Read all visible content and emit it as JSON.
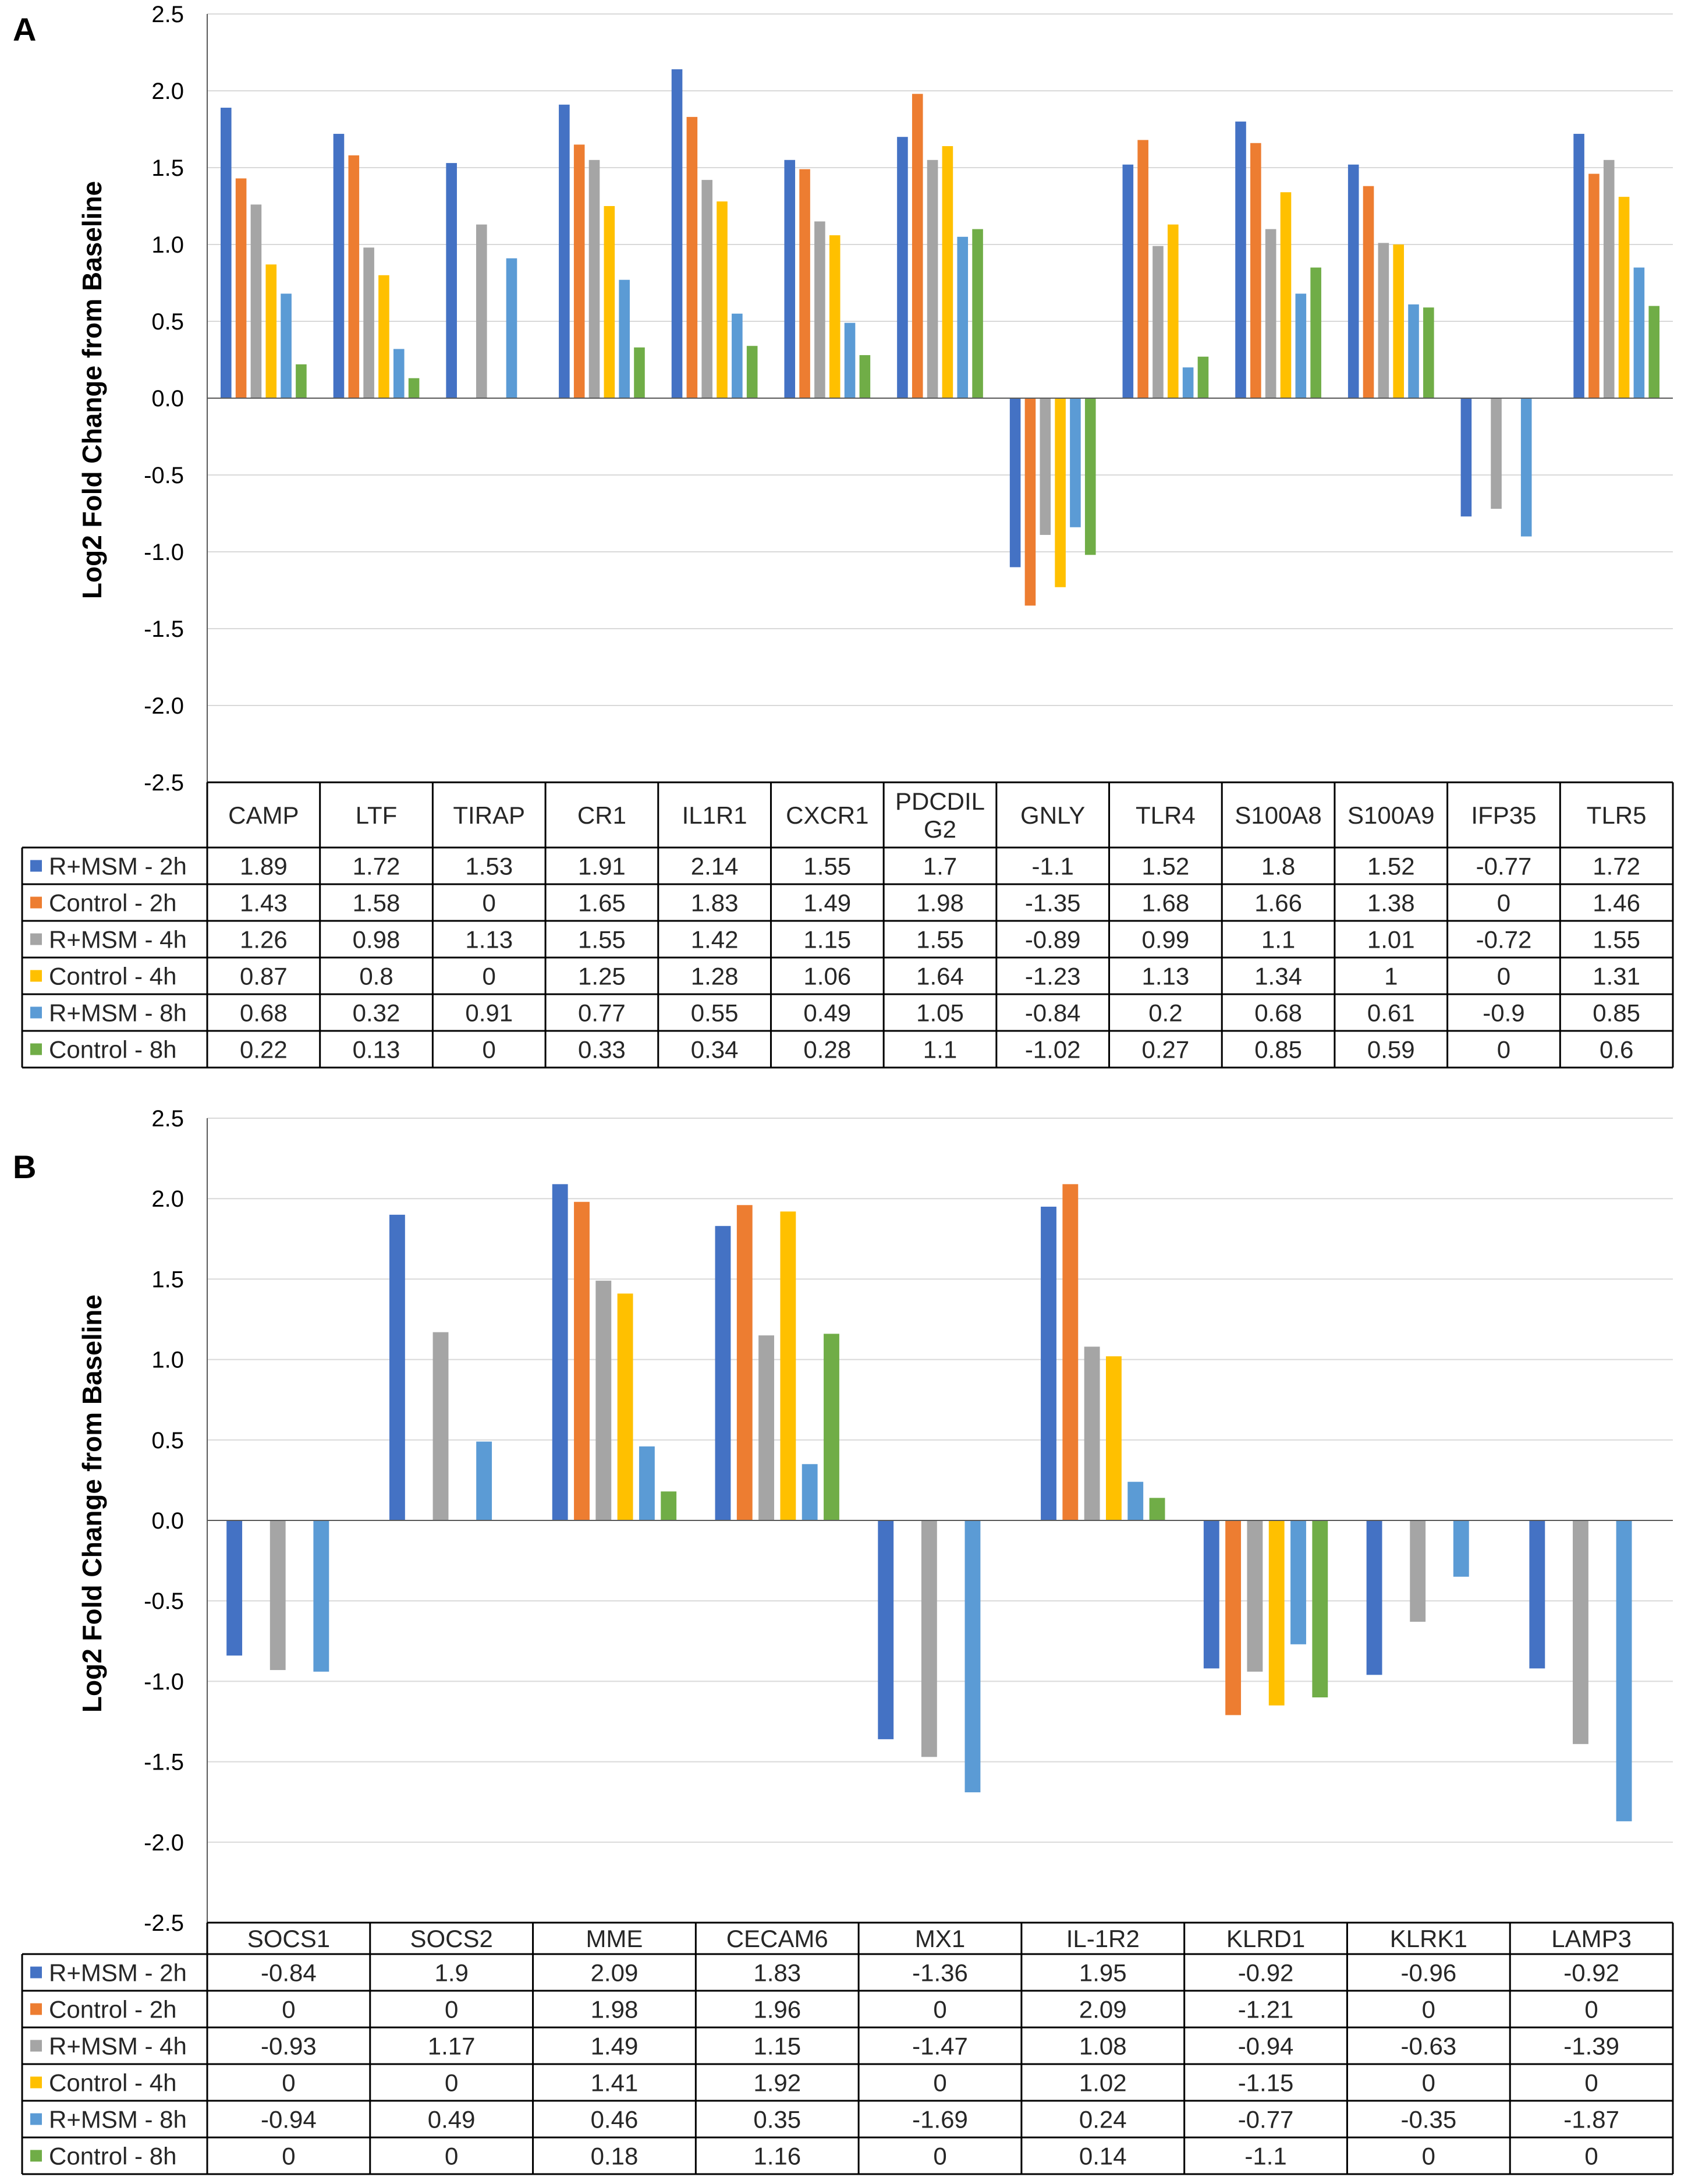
{
  "chart_data": [
    {
      "panel": "A",
      "type": "bar",
      "ylabel": "Log2 Fold Change from Baseline",
      "ylim": [
        -2.5,
        2.5
      ],
      "yticks": [
        "2.5",
        "2.0",
        "1.5",
        "1.0",
        "0.5",
        "0.0",
        "-0.5",
        "-1.0",
        "-1.5",
        "-2.0",
        "-2.5"
      ],
      "categories": [
        [
          "CAMP"
        ],
        [
          "LTF"
        ],
        [
          "TIRAP"
        ],
        [
          "CR1"
        ],
        [
          "IL1R1"
        ],
        [
          "CXCR1"
        ],
        [
          "PDCDIL",
          "G2"
        ],
        [
          "GNLY"
        ],
        [
          "TLR4"
        ],
        [
          "S100A8"
        ],
        [
          "S100A9"
        ],
        [
          "IFP35"
        ],
        [
          "TLR5"
        ]
      ],
      "series": [
        {
          "name": "R+MSM - 2h",
          "color": "#4472C4",
          "values": [
            1.89,
            1.72,
            1.53,
            1.91,
            2.14,
            1.55,
            1.7,
            -1.1,
            1.52,
            1.8,
            1.52,
            -0.77,
            1.72
          ]
        },
        {
          "name": "Control - 2h",
          "color": "#ED7D31",
          "values": [
            1.43,
            1.58,
            0,
            1.65,
            1.83,
            1.49,
            1.98,
            -1.35,
            1.68,
            1.66,
            1.38,
            0,
            1.46
          ]
        },
        {
          "name": "R+MSM - 4h",
          "color": "#A5A5A5",
          "values": [
            1.26,
            0.98,
            1.13,
            1.55,
            1.42,
            1.15,
            1.55,
            -0.89,
            0.99,
            1.1,
            1.01,
            -0.72,
            1.55
          ]
        },
        {
          "name": "Control - 4h",
          "color": "#FFC000",
          "values": [
            0.87,
            0.8,
            0,
            1.25,
            1.28,
            1.06,
            1.64,
            -1.23,
            1.13,
            1.34,
            1,
            0,
            1.31
          ]
        },
        {
          "name": "R+MSM - 8h",
          "color": "#5B9BD5",
          "values": [
            0.68,
            0.32,
            0.91,
            0.77,
            0.55,
            0.49,
            1.05,
            -0.84,
            0.2,
            0.68,
            0.61,
            -0.9,
            0.85
          ]
        },
        {
          "name": "Control - 8h",
          "color": "#70AD47",
          "values": [
            0.22,
            0.13,
            0,
            0.33,
            0.34,
            0.28,
            1.1,
            -1.02,
            0.27,
            0.85,
            0.59,
            0,
            0.6
          ]
        }
      ]
    },
    {
      "panel": "B",
      "type": "bar",
      "ylabel": "Log2 Fold Change from Baseline",
      "ylim": [
        -2.5,
        2.5
      ],
      "yticks": [
        "2.5",
        "2.0",
        "1.5",
        "1.0",
        "0.5",
        "0.0",
        "-0.5",
        "-1.0",
        "-1.5",
        "-2.0",
        "-2.5"
      ],
      "categories": [
        [
          "SOCS1"
        ],
        [
          "SOCS2"
        ],
        [
          "MME"
        ],
        [
          "CECAM6"
        ],
        [
          "MX1"
        ],
        [
          "IL-1R2"
        ],
        [
          "KLRD1"
        ],
        [
          "KLRK1"
        ],
        [
          "LAMP3"
        ]
      ],
      "series": [
        {
          "name": "R+MSM - 2h",
          "color": "#4472C4",
          "values": [
            -0.84,
            1.9,
            2.09,
            1.83,
            -1.36,
            1.95,
            -0.92,
            -0.96,
            -0.92
          ]
        },
        {
          "name": "Control - 2h",
          "color": "#ED7D31",
          "values": [
            0,
            0,
            1.98,
            1.96,
            0,
            2.09,
            -1.21,
            0,
            0
          ]
        },
        {
          "name": "R+MSM - 4h",
          "color": "#A5A5A5",
          "values": [
            -0.93,
            1.17,
            1.49,
            1.15,
            -1.47,
            1.08,
            -0.94,
            -0.63,
            -1.39
          ]
        },
        {
          "name": "Control - 4h",
          "color": "#FFC000",
          "values": [
            0,
            0,
            1.41,
            1.92,
            0,
            1.02,
            -1.15,
            0,
            0
          ]
        },
        {
          "name": "R+MSM - 8h",
          "color": "#5B9BD5",
          "values": [
            -0.94,
            0.49,
            0.46,
            0.35,
            -1.69,
            0.24,
            -0.77,
            -0.35,
            -1.87
          ]
        },
        {
          "name": "Control - 8h",
          "color": "#70AD47",
          "values": [
            0,
            0,
            0.18,
            1.16,
            0,
            0.14,
            -1.1,
            0,
            0
          ]
        }
      ]
    }
  ]
}
